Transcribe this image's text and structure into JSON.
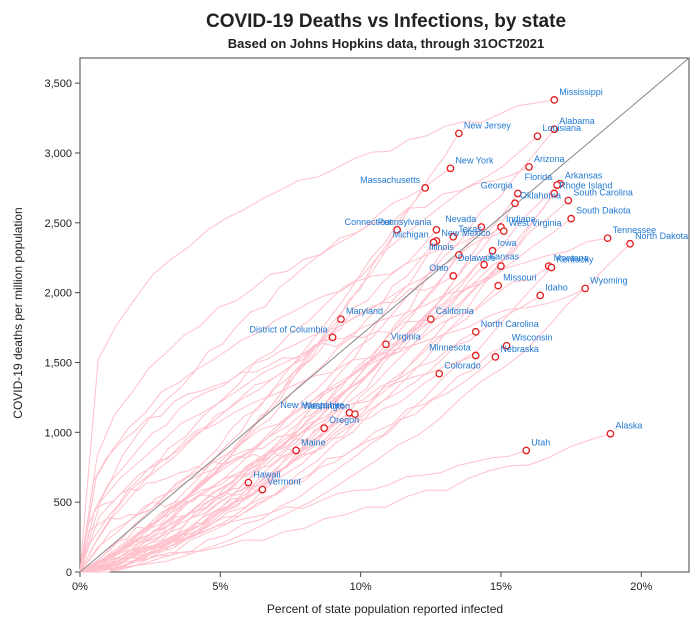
{
  "chart_data": {
    "type": "scatter",
    "title": "COVID-19 Deaths vs Infections, by state",
    "subtitle": "Based on Johns Hopkins data, through 31OCT2021",
    "xlabel": "Percent of state population reported infected",
    "ylabel": "COVID-19 deaths per million population",
    "xlim": [
      0,
      21.7
    ],
    "ylim": [
      0,
      3680
    ],
    "x_ticks": [
      0,
      5,
      10,
      15,
      20
    ],
    "x_tick_labels": [
      "0%",
      "5%",
      "10%",
      "15%",
      "20%"
    ],
    "y_ticks": [
      0,
      500,
      1000,
      1500,
      2000,
      2500,
      3000,
      3500
    ],
    "y_tick_labels": [
      "0",
      "500",
      "1,000",
      "1,500",
      "2,000",
      "2,500",
      "3,000",
      "3,500"
    ],
    "reference_line": {
      "from": [
        0,
        0
      ],
      "to": [
        21.7,
        3680
      ],
      "color": "#888888"
    },
    "colors": {
      "trajectory": "#ffc0cb",
      "marker": "#e41a1c",
      "label": "#1f78d1"
    },
    "points": [
      {
        "name": "Mississippi",
        "x": 16.9,
        "y": 3380,
        "anchor": "start"
      },
      {
        "name": "Alabama",
        "x": 16.9,
        "y": 3170,
        "anchor": "start"
      },
      {
        "name": "New Jersey",
        "x": 13.5,
        "y": 3140,
        "anchor": "start"
      },
      {
        "name": "Louisiana",
        "x": 16.3,
        "y": 3120,
        "anchor": "start"
      },
      {
        "name": "Arizona",
        "x": 16.0,
        "y": 2900,
        "anchor": "start"
      },
      {
        "name": "New York",
        "x": 13.2,
        "y": 2890,
        "anchor": "start"
      },
      {
        "name": "Arkansas",
        "x": 17.1,
        "y": 2780,
        "anchor": "start"
      },
      {
        "name": "Florida",
        "x": 17.0,
        "y": 2770,
        "anchor": "end"
      },
      {
        "name": "Massachusetts",
        "x": 12.3,
        "y": 2750,
        "anchor": "end"
      },
      {
        "name": "Tennessee",
        "x": 18.8,
        "y": 2390,
        "anchor": "start"
      },
      {
        "name": "North Dakota",
        "x": 19.6,
        "y": 2350,
        "anchor": "start"
      },
      {
        "name": "Rhode Island",
        "x": 16.9,
        "y": 2710,
        "anchor": "start"
      },
      {
        "name": "Georgia",
        "x": 15.6,
        "y": 2710,
        "anchor": "end"
      },
      {
        "name": "South Carolina",
        "x": 17.4,
        "y": 2660,
        "anchor": "start"
      },
      {
        "name": "Oklahoma",
        "x": 15.5,
        "y": 2640,
        "anchor": "start"
      },
      {
        "name": "South Dakota",
        "x": 17.5,
        "y": 2530,
        "anchor": "start"
      },
      {
        "name": "Pennsylvania",
        "x": 12.7,
        "y": 2450,
        "anchor": "end"
      },
      {
        "name": "Connecticut",
        "x": 11.3,
        "y": 2450,
        "anchor": "end"
      },
      {
        "name": "Nevada",
        "x": 14.3,
        "y": 2470,
        "anchor": "end"
      },
      {
        "name": "Indiana",
        "x": 15.0,
        "y": 2470,
        "anchor": "start"
      },
      {
        "name": "West Virginia",
        "x": 15.1,
        "y": 2440,
        "anchor": "start"
      },
      {
        "name": "Texas",
        "x": 13.3,
        "y": 2400,
        "anchor": "start"
      },
      {
        "name": "New Mexico",
        "x": 12.7,
        "y": 2370,
        "anchor": "start"
      },
      {
        "name": "Michigan",
        "x": 12.6,
        "y": 2360,
        "anchor": "end"
      },
      {
        "name": "Iowa",
        "x": 14.7,
        "y": 2300,
        "anchor": "start"
      },
      {
        "name": "Illinois",
        "x": 13.5,
        "y": 2270,
        "anchor": "end"
      },
      {
        "name": "Kansas",
        "x": 14.4,
        "y": 2200,
        "anchor": "start"
      },
      {
        "name": "Delaware",
        "x": 15.0,
        "y": 2190,
        "anchor": "end"
      },
      {
        "name": "Montana",
        "x": 16.7,
        "y": 2190,
        "anchor": "start"
      },
      {
        "name": "Kentucky",
        "x": 16.8,
        "y": 2180,
        "anchor": "start"
      },
      {
        "name": "Ohio",
        "x": 13.3,
        "y": 2120,
        "anchor": "end"
      },
      {
        "name": "Missouri",
        "x": 14.9,
        "y": 2050,
        "anchor": "start"
      },
      {
        "name": "Idaho",
        "x": 16.4,
        "y": 1980,
        "anchor": "start"
      },
      {
        "name": "Wyoming",
        "x": 18.0,
        "y": 2030,
        "anchor": "start"
      },
      {
        "name": "Maryland",
        "x": 9.3,
        "y": 1810,
        "anchor": "start"
      },
      {
        "name": "California",
        "x": 12.5,
        "y": 1810,
        "anchor": "start"
      },
      {
        "name": "District of Columbia",
        "x": 9.0,
        "y": 1680,
        "anchor": "end"
      },
      {
        "name": "North Carolina",
        "x": 14.1,
        "y": 1720,
        "anchor": "start"
      },
      {
        "name": "Virginia",
        "x": 10.9,
        "y": 1630,
        "anchor": "start"
      },
      {
        "name": "Wisconsin",
        "x": 15.2,
        "y": 1620,
        "anchor": "start"
      },
      {
        "name": "Minnesota",
        "x": 14.1,
        "y": 1550,
        "anchor": "end"
      },
      {
        "name": "Nebraska",
        "x": 14.8,
        "y": 1540,
        "anchor": "start"
      },
      {
        "name": "Colorado",
        "x": 12.8,
        "y": 1420,
        "anchor": "start"
      },
      {
        "name": "New Hampshire",
        "x": 9.6,
        "y": 1140,
        "anchor": "end"
      },
      {
        "name": "Washington",
        "x": 9.8,
        "y": 1130,
        "anchor": "end"
      },
      {
        "name": "Oregon",
        "x": 8.7,
        "y": 1030,
        "anchor": "start"
      },
      {
        "name": "Alaska",
        "x": 18.9,
        "y": 990,
        "anchor": "start"
      },
      {
        "name": "Maine",
        "x": 7.7,
        "y": 870,
        "anchor": "start"
      },
      {
        "name": "Utah",
        "x": 15.9,
        "y": 870,
        "anchor": "start"
      },
      {
        "name": "Hawaii",
        "x": 6.0,
        "y": 640,
        "anchor": "start"
      },
      {
        "name": "Vermont",
        "x": 6.5,
        "y": 590,
        "anchor": "start"
      }
    ]
  }
}
